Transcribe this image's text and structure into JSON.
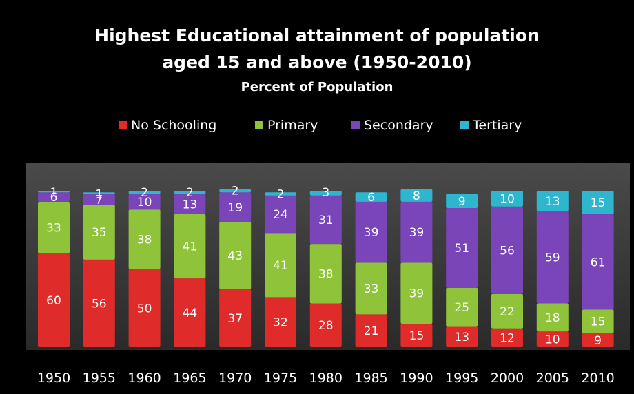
{
  "chart_data": {
    "type": "bar",
    "stacked": true,
    "title": "Highest Educational attainment of population",
    "title_line2": "aged 15 and above  (1950-2010)",
    "subtitle": "Percent of Population",
    "categories": [
      "1950",
      "1955",
      "1960",
      "1965",
      "1970",
      "1975",
      "1980",
      "1985",
      "1990",
      "1995",
      "2000",
      "2005",
      "2010"
    ],
    "series": [
      {
        "name": "No Schooling",
        "color": "#e02b2b",
        "values": [
          60,
          56,
          50,
          44,
          37,
          32,
          28,
          21,
          15,
          13,
          12,
          10,
          9
        ]
      },
      {
        "name": "Primary",
        "color": "#8fc43a",
        "values": [
          33,
          35,
          38,
          41,
          43,
          41,
          38,
          33,
          39,
          25,
          22,
          18,
          15
        ]
      },
      {
        "name": "Secondary",
        "color": "#7a45b8",
        "values": [
          6,
          7,
          10,
          13,
          19,
          24,
          31,
          39,
          39,
          51,
          56,
          59,
          61
        ]
      },
      {
        "name": "Tertiary",
        "color": "#2fb6cf",
        "values": [
          1,
          1,
          2,
          2,
          2,
          2,
          3,
          6,
          8,
          9,
          10,
          13,
          15
        ]
      }
    ],
    "ylim": [
      0,
      100
    ],
    "legend_position": "top",
    "grid": false,
    "plot_background": "#3a3a3a",
    "page_background": "#000000"
  }
}
